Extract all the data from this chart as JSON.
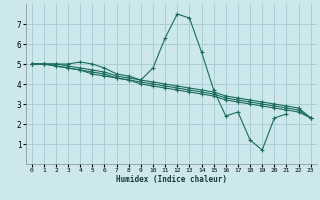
{
  "xlabel": "Humidex (Indice chaleur)",
  "background_color": "#cce8ec",
  "grid_color": "#aacdd4",
  "line_color": "#1a6b5a",
  "xlim": [
    -0.5,
    23.5
  ],
  "ylim": [
    0,
    8
  ],
  "yticks": [
    1,
    2,
    3,
    4,
    5,
    6,
    7
  ],
  "xticks": [
    0,
    1,
    2,
    3,
    4,
    5,
    6,
    7,
    8,
    9,
    10,
    11,
    12,
    13,
    14,
    15,
    16,
    17,
    18,
    19,
    20,
    21,
    22,
    23
  ],
  "series": [
    [
      5.0,
      5.0,
      5.0,
      5.0,
      5.1,
      5.0,
      4.8,
      4.5,
      4.4,
      4.2,
      4.8,
      6.3,
      7.5,
      7.3,
      5.6,
      3.7,
      2.4,
      2.6,
      1.2,
      0.7,
      2.3,
      2.5,
      null,
      null
    ],
    [
      5.0,
      5.0,
      5.0,
      4.9,
      4.8,
      4.7,
      4.6,
      4.4,
      4.3,
      4.2,
      4.1,
      4.0,
      3.9,
      3.8,
      3.7,
      3.6,
      3.4,
      3.3,
      3.2,
      3.1,
      3.0,
      2.9,
      2.8,
      2.3
    ],
    [
      5.0,
      5.0,
      4.9,
      4.8,
      4.7,
      4.6,
      4.5,
      4.3,
      4.2,
      4.1,
      4.0,
      3.9,
      3.8,
      3.7,
      3.6,
      3.5,
      3.3,
      3.2,
      3.1,
      3.0,
      2.9,
      2.8,
      2.7,
      2.3
    ],
    [
      5.0,
      5.0,
      4.9,
      4.8,
      4.7,
      4.5,
      4.4,
      4.3,
      4.2,
      4.0,
      3.9,
      3.8,
      3.7,
      3.6,
      3.5,
      3.4,
      3.2,
      3.1,
      3.0,
      2.9,
      2.8,
      2.7,
      2.6,
      2.3
    ]
  ]
}
